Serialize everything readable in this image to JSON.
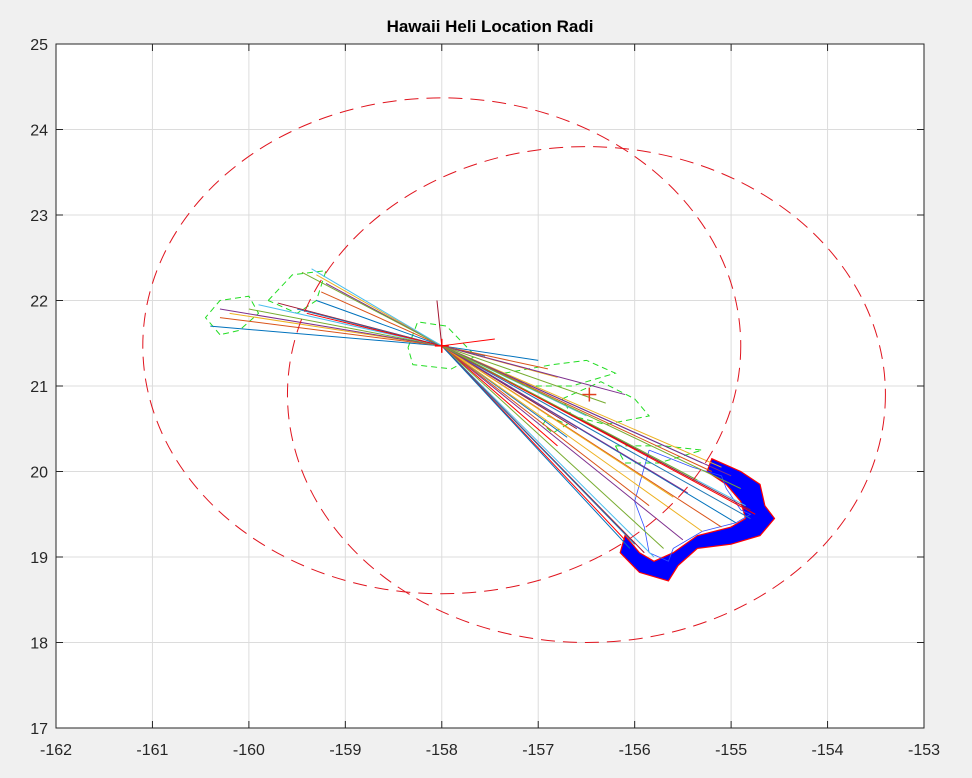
{
  "chart_data": {
    "type": "line",
    "title": "Hawaii Heli Location Radi",
    "xlabel": "",
    "ylabel": "",
    "xlim": [
      -162,
      -153
    ],
    "ylim": [
      17,
      25
    ],
    "xticks": [
      "-162",
      "-161",
      "-160",
      "-159",
      "-158",
      "-157",
      "-156",
      "-155",
      "-154",
      "-153"
    ],
    "yticks": [
      "17",
      "18",
      "19",
      "20",
      "21",
      "22",
      "23",
      "24",
      "25"
    ],
    "grid": true,
    "legend": "none",
    "colors": {
      "background": "#f0f0f0",
      "axes": "#ffffff",
      "grid": "#dcdcdc",
      "circles": "#e0141e",
      "coast": "#22dd22",
      "fill": "#0000ff",
      "fill_edge": "#ff0000",
      "ray_palette": [
        "#0072bd",
        "#d95319",
        "#edb120",
        "#7e2f8e",
        "#77ac30",
        "#4dbeee",
        "#a2142f",
        "#1f77b4",
        "#ff0000"
      ]
    },
    "range_circles": [
      {
        "center": [
          -158.0,
          21.47
        ],
        "radius_x": 3.1,
        "radius_y": 2.9
      },
      {
        "center": [
          -156.5,
          20.9
        ],
        "radius_x": 3.1,
        "radius_y": 2.9
      }
    ],
    "center_markers": [
      {
        "x": -158.0,
        "y": 21.47,
        "color": "#ff0000"
      },
      {
        "x": -156.47,
        "y": 20.9,
        "color": "#e0401e"
      }
    ],
    "ray_origin": [
      -158.0,
      21.47
    ],
    "ray_endpoints": [
      [
        -160.4,
        21.7
      ],
      [
        -160.3,
        21.8
      ],
      [
        -160.2,
        21.85
      ],
      [
        -160.3,
        21.9
      ],
      [
        -160.0,
        21.9
      ],
      [
        -159.9,
        21.95
      ],
      [
        -159.7,
        21.97
      ],
      [
        -159.5,
        21.9
      ],
      [
        -159.4,
        21.85
      ],
      [
        -159.3,
        22.0
      ],
      [
        -159.25,
        22.1
      ],
      [
        -159.3,
        22.3
      ],
      [
        -159.2,
        22.2
      ],
      [
        -159.45,
        22.33
      ],
      [
        -159.35,
        22.37
      ],
      [
        -158.05,
        22.0
      ],
      [
        -157.55,
        21.35
      ],
      [
        -157.45,
        21.55
      ],
      [
        -157.0,
        21.3
      ],
      [
        -156.9,
        21.2
      ],
      [
        -156.8,
        21.1
      ],
      [
        -156.1,
        20.9
      ],
      [
        -156.3,
        20.8
      ],
      [
        -156.5,
        20.65
      ],
      [
        -156.6,
        20.5
      ],
      [
        -156.7,
        20.4
      ],
      [
        -156.8,
        20.3
      ],
      [
        -155.3,
        20.1
      ],
      [
        -155.2,
        20.0
      ],
      [
        -155.1,
        20.05
      ],
      [
        -155.0,
        19.95
      ],
      [
        -154.9,
        19.8
      ],
      [
        -154.85,
        19.6
      ],
      [
        -154.8,
        19.55
      ],
      [
        -154.8,
        19.45
      ],
      [
        -154.75,
        19.5
      ],
      [
        -154.95,
        19.4
      ],
      [
        -155.1,
        19.35
      ],
      [
        -155.3,
        19.3
      ],
      [
        -155.5,
        19.2
      ],
      [
        -155.7,
        19.1
      ],
      [
        -155.8,
        19.0
      ],
      [
        -155.9,
        19.05
      ],
      [
        -156.0,
        19.15
      ],
      [
        -156.1,
        19.2
      ],
      [
        -156.05,
        19.1
      ],
      [
        -155.85,
        19.6
      ],
      [
        -155.6,
        19.7
      ],
      [
        -155.45,
        19.75
      ],
      [
        -155.35,
        19.9
      ]
    ],
    "big_island_outline": [
      [
        -155.85,
        20.25
      ],
      [
        -155.4,
        20.05
      ],
      [
        -155.1,
        19.95
      ],
      [
        -155.05,
        19.8
      ],
      [
        -154.9,
        19.55
      ],
      [
        -154.8,
        19.5
      ],
      [
        -154.95,
        19.4
      ],
      [
        -155.3,
        19.3
      ],
      [
        -155.6,
        19.1
      ],
      [
        -155.65,
        18.95
      ],
      [
        -155.85,
        19.05
      ],
      [
        -155.9,
        19.35
      ],
      [
        -156.0,
        19.65
      ],
      [
        -155.95,
        19.85
      ],
      [
        -155.85,
        20.25
      ]
    ],
    "buffer_band": [
      [
        -155.2,
        20.15
      ],
      [
        -154.9,
        20.0
      ],
      [
        -154.7,
        19.85
      ],
      [
        -154.65,
        19.6
      ],
      [
        -154.55,
        19.45
      ],
      [
        -154.7,
        19.25
      ],
      [
        -155.0,
        19.15
      ],
      [
        -155.35,
        19.1
      ],
      [
        -155.55,
        18.9
      ],
      [
        -155.65,
        18.72
      ],
      [
        -155.95,
        18.82
      ],
      [
        -156.15,
        19.05
      ],
      [
        -156.1,
        19.25
      ],
      [
        -155.95,
        19.05
      ],
      [
        -155.8,
        18.95
      ],
      [
        -155.6,
        19.05
      ],
      [
        -155.35,
        19.25
      ],
      [
        -155.0,
        19.35
      ],
      [
        -154.85,
        19.45
      ],
      [
        -154.9,
        19.65
      ],
      [
        -155.05,
        19.85
      ],
      [
        -155.25,
        20.0
      ],
      [
        -155.2,
        20.15
      ]
    ],
    "coastlines_dashed": [
      [
        [
          -160.3,
          21.6
        ],
        [
          -160.45,
          21.8
        ],
        [
          -160.3,
          22.0
        ],
        [
          -160.0,
          22.05
        ],
        [
          -159.9,
          21.85
        ],
        [
          -160.1,
          21.65
        ],
        [
          -160.3,
          21.6
        ]
      ],
      [
        [
          -159.8,
          22.0
        ],
        [
          -159.55,
          22.3
        ],
        [
          -159.2,
          22.35
        ],
        [
          -159.3,
          22.0
        ],
        [
          -159.5,
          21.85
        ],
        [
          -159.8,
          22.0
        ]
      ],
      [
        [
          -158.35,
          21.45
        ],
        [
          -158.25,
          21.75
        ],
        [
          -157.95,
          21.7
        ],
        [
          -157.65,
          21.35
        ],
        [
          -157.9,
          21.2
        ],
        [
          -158.3,
          21.25
        ],
        [
          -158.35,
          21.45
        ]
      ],
      [
        [
          -157.35,
          21.15
        ],
        [
          -156.85,
          21.25
        ],
        [
          -156.5,
          21.3
        ],
        [
          -156.2,
          21.15
        ],
        [
          -156.65,
          21.0
        ],
        [
          -157.1,
          21.0
        ],
        [
          -157.35,
          21.15
        ]
      ],
      [
        [
          -156.75,
          20.85
        ],
        [
          -156.35,
          21.05
        ],
        [
          -156.0,
          20.85
        ],
        [
          -155.85,
          20.65
        ],
        [
          -156.3,
          20.55
        ],
        [
          -156.65,
          20.65
        ],
        [
          -156.75,
          20.85
        ]
      ],
      [
        [
          -156.9,
          20.65
        ],
        [
          -156.7,
          20.55
        ],
        [
          -156.85,
          20.45
        ],
        [
          -156.95,
          20.55
        ],
        [
          -156.9,
          20.65
        ]
      ],
      [
        [
          -156.2,
          20.3
        ],
        [
          -155.7,
          20.3
        ],
        [
          -155.3,
          20.25
        ],
        [
          -155.75,
          20.1
        ],
        [
          -156.1,
          20.1
        ],
        [
          -156.2,
          20.3
        ]
      ]
    ]
  }
}
